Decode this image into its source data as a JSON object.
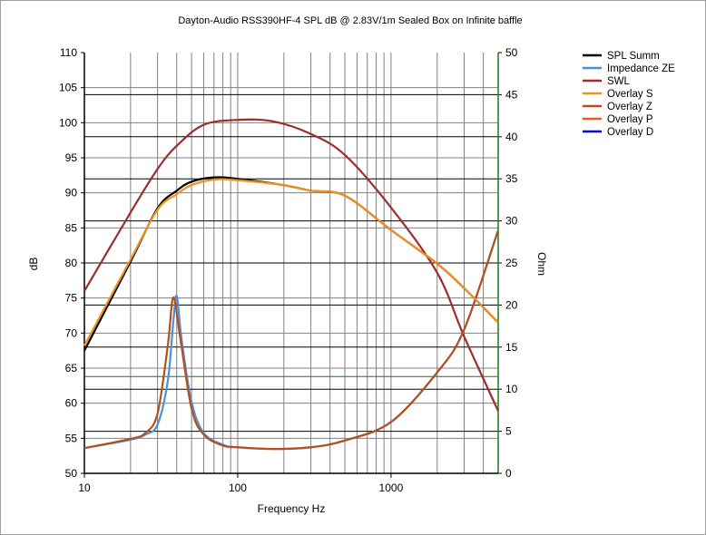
{
  "chart_data": {
    "type": "line",
    "title": "Dayton-Audio RSS390HF-4 SPL dB @ 2.83V/1m Sealed Box on Infinite baffle",
    "xlabel": "Frequency Hz",
    "ylabel": "dB",
    "y2label": "Ohm",
    "xscale": "log",
    "xlim": [
      10,
      5000
    ],
    "ylim": [
      50,
      110
    ],
    "y2lim": [
      0,
      50
    ],
    "xticks": [
      "10",
      "100",
      "1000"
    ],
    "yticks": [
      "110",
      "105",
      "100",
      "95",
      "90",
      "85",
      "80",
      "75",
      "70",
      "65",
      "60",
      "55",
      "50"
    ],
    "y2ticks": [
      "50",
      "45",
      "40",
      "35",
      "30",
      "25",
      "20",
      "15",
      "10",
      "5",
      "0"
    ],
    "grid": true,
    "legend_position": "right",
    "reference_line_ohm": 11.5,
    "series": [
      {
        "name": "SPL Summ",
        "axis": "left",
        "color": "#000000",
        "x": [
          10,
          20,
          30,
          40,
          50,
          70,
          100,
          200,
          300,
          500,
          1000,
          2000,
          3000,
          5000
        ],
        "y": [
          67.5,
          80.2,
          87.8,
          90.3,
          91.6,
          92.2,
          92.0,
          91.1,
          90.3,
          89.6,
          84.7,
          79.9,
          76.4,
          71.5
        ]
      },
      {
        "name": "Impedance ZE",
        "axis": "right",
        "color": "#4a90e2",
        "x": [
          10,
          20,
          25,
          30,
          35,
          38,
          40,
          43,
          50,
          60,
          80,
          100,
          170,
          300,
          500,
          1000,
          2000,
          3000,
          5000
        ],
        "y": [
          3.0,
          4.0,
          4.6,
          5.8,
          11,
          18,
          21.1,
          16,
          8.5,
          4.8,
          3.4,
          3.1,
          2.9,
          3.1,
          3.9,
          6.1,
          12,
          17.1,
          28.9
        ]
      },
      {
        "name": "SWL",
        "axis": "left",
        "color": "#9b2d2d",
        "x": [
          10,
          20,
          30,
          40,
          60,
          100,
          170,
          300,
          500,
          1000,
          2000,
          3000,
          5000
        ],
        "y": [
          76,
          87.2,
          93.4,
          96.7,
          99.7,
          100.4,
          100.2,
          98.4,
          95.4,
          87.9,
          78.6,
          69.5,
          58.9
        ]
      },
      {
        "name": "Overlay S",
        "axis": "left",
        "color": "#f0901e",
        "x": [
          10,
          20,
          30,
          40,
          50,
          70,
          100,
          200,
          300,
          500,
          1000,
          2000,
          3000,
          5000
        ],
        "y": [
          68.2,
          80.5,
          87.6,
          89.8,
          91.1,
          91.9,
          91.8,
          91.1,
          90.3,
          89.6,
          84.7,
          79.9,
          76.4,
          71.5
        ]
      },
      {
        "name": "Overlay Z",
        "axis": "right",
        "color": "#b5501c",
        "x": [
          10,
          20,
          25,
          30,
          35,
          38,
          42,
          50,
          60,
          80,
          100,
          170,
          300,
          500,
          1000,
          2000,
          3000,
          5000
        ],
        "y": [
          3.0,
          4.1,
          4.8,
          7.1,
          15.2,
          20.9,
          16.3,
          7.7,
          4.6,
          3.3,
          3.1,
          2.9,
          3.1,
          3.9,
          6.1,
          12,
          17.1,
          28.9
        ]
      },
      {
        "name": "Overlay P",
        "axis": "left",
        "color": "#f05a1e",
        "x": [],
        "y": []
      },
      {
        "name": "Overlay D",
        "axis": "left",
        "color": "#0000d0",
        "x": [],
        "y": []
      }
    ]
  }
}
